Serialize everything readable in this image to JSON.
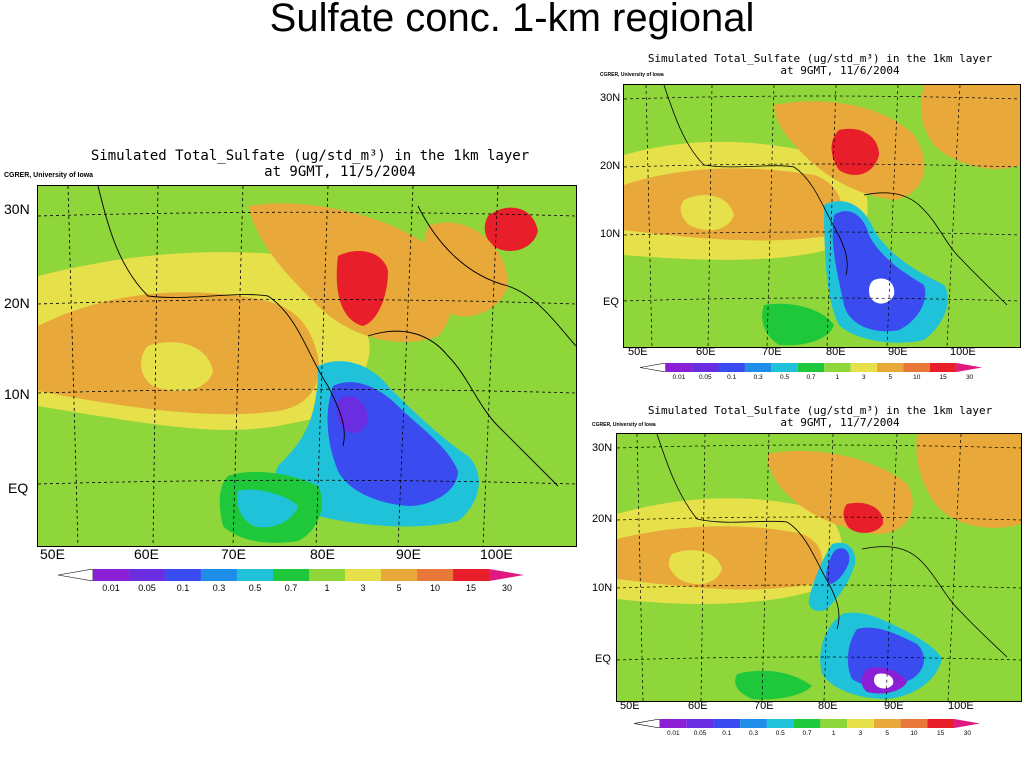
{
  "slide_title": "Sulfate conc. 1-km regional",
  "panels": [
    {
      "title_line1": "Simulated Total_Sulfate (ug/std_m³) in the 1km layer",
      "title_line2": "at 9GMT, 11/5/2004",
      "credit": "CGRER, University of Iowa",
      "lat_labels": [
        "30N",
        "20N",
        "10N",
        "EQ"
      ],
      "lon_labels": [
        "50E",
        "60E",
        "70E",
        "80E",
        "90E",
        "100E"
      ]
    },
    {
      "title_line1": "Simulated Total_Sulfate (ug/std_m³) in the 1km layer",
      "title_line2": "at 9GMT, 11/6/2004",
      "credit": "CGRER, University of Iowa",
      "lat_labels": [
        "30N",
        "20N",
        "10N",
        "EQ"
      ],
      "lon_labels": [
        "50E",
        "60E",
        "70E",
        "80E",
        "90E",
        "100E"
      ]
    },
    {
      "title_line1": "Simulated Total_Sulfate (ug/std_m³) in the 1km layer",
      "title_line2": "at 9GMT, 11/7/2004",
      "credit": "CGRER, University of Iowa",
      "lat_labels": [
        "30N",
        "20N",
        "10N",
        "EQ"
      ],
      "lon_labels": [
        "50E",
        "60E",
        "70E",
        "80E",
        "90E",
        "100E"
      ]
    }
  ],
  "colorbar": {
    "levels": [
      "0.01",
      "0.05",
      "0.1",
      "0.3",
      "0.5",
      "0.7",
      "1",
      "3",
      "5",
      "10",
      "15",
      "30"
    ],
    "colors": [
      "#ffffff",
      "#8a1fd6",
      "#6a2ee0",
      "#3a4cf0",
      "#1f8ee8",
      "#1fc2d8",
      "#1fc83a",
      "#8fd63a",
      "#e6e04a",
      "#e8a83a",
      "#e8783a",
      "#e81e2a",
      "#e01880"
    ]
  }
}
